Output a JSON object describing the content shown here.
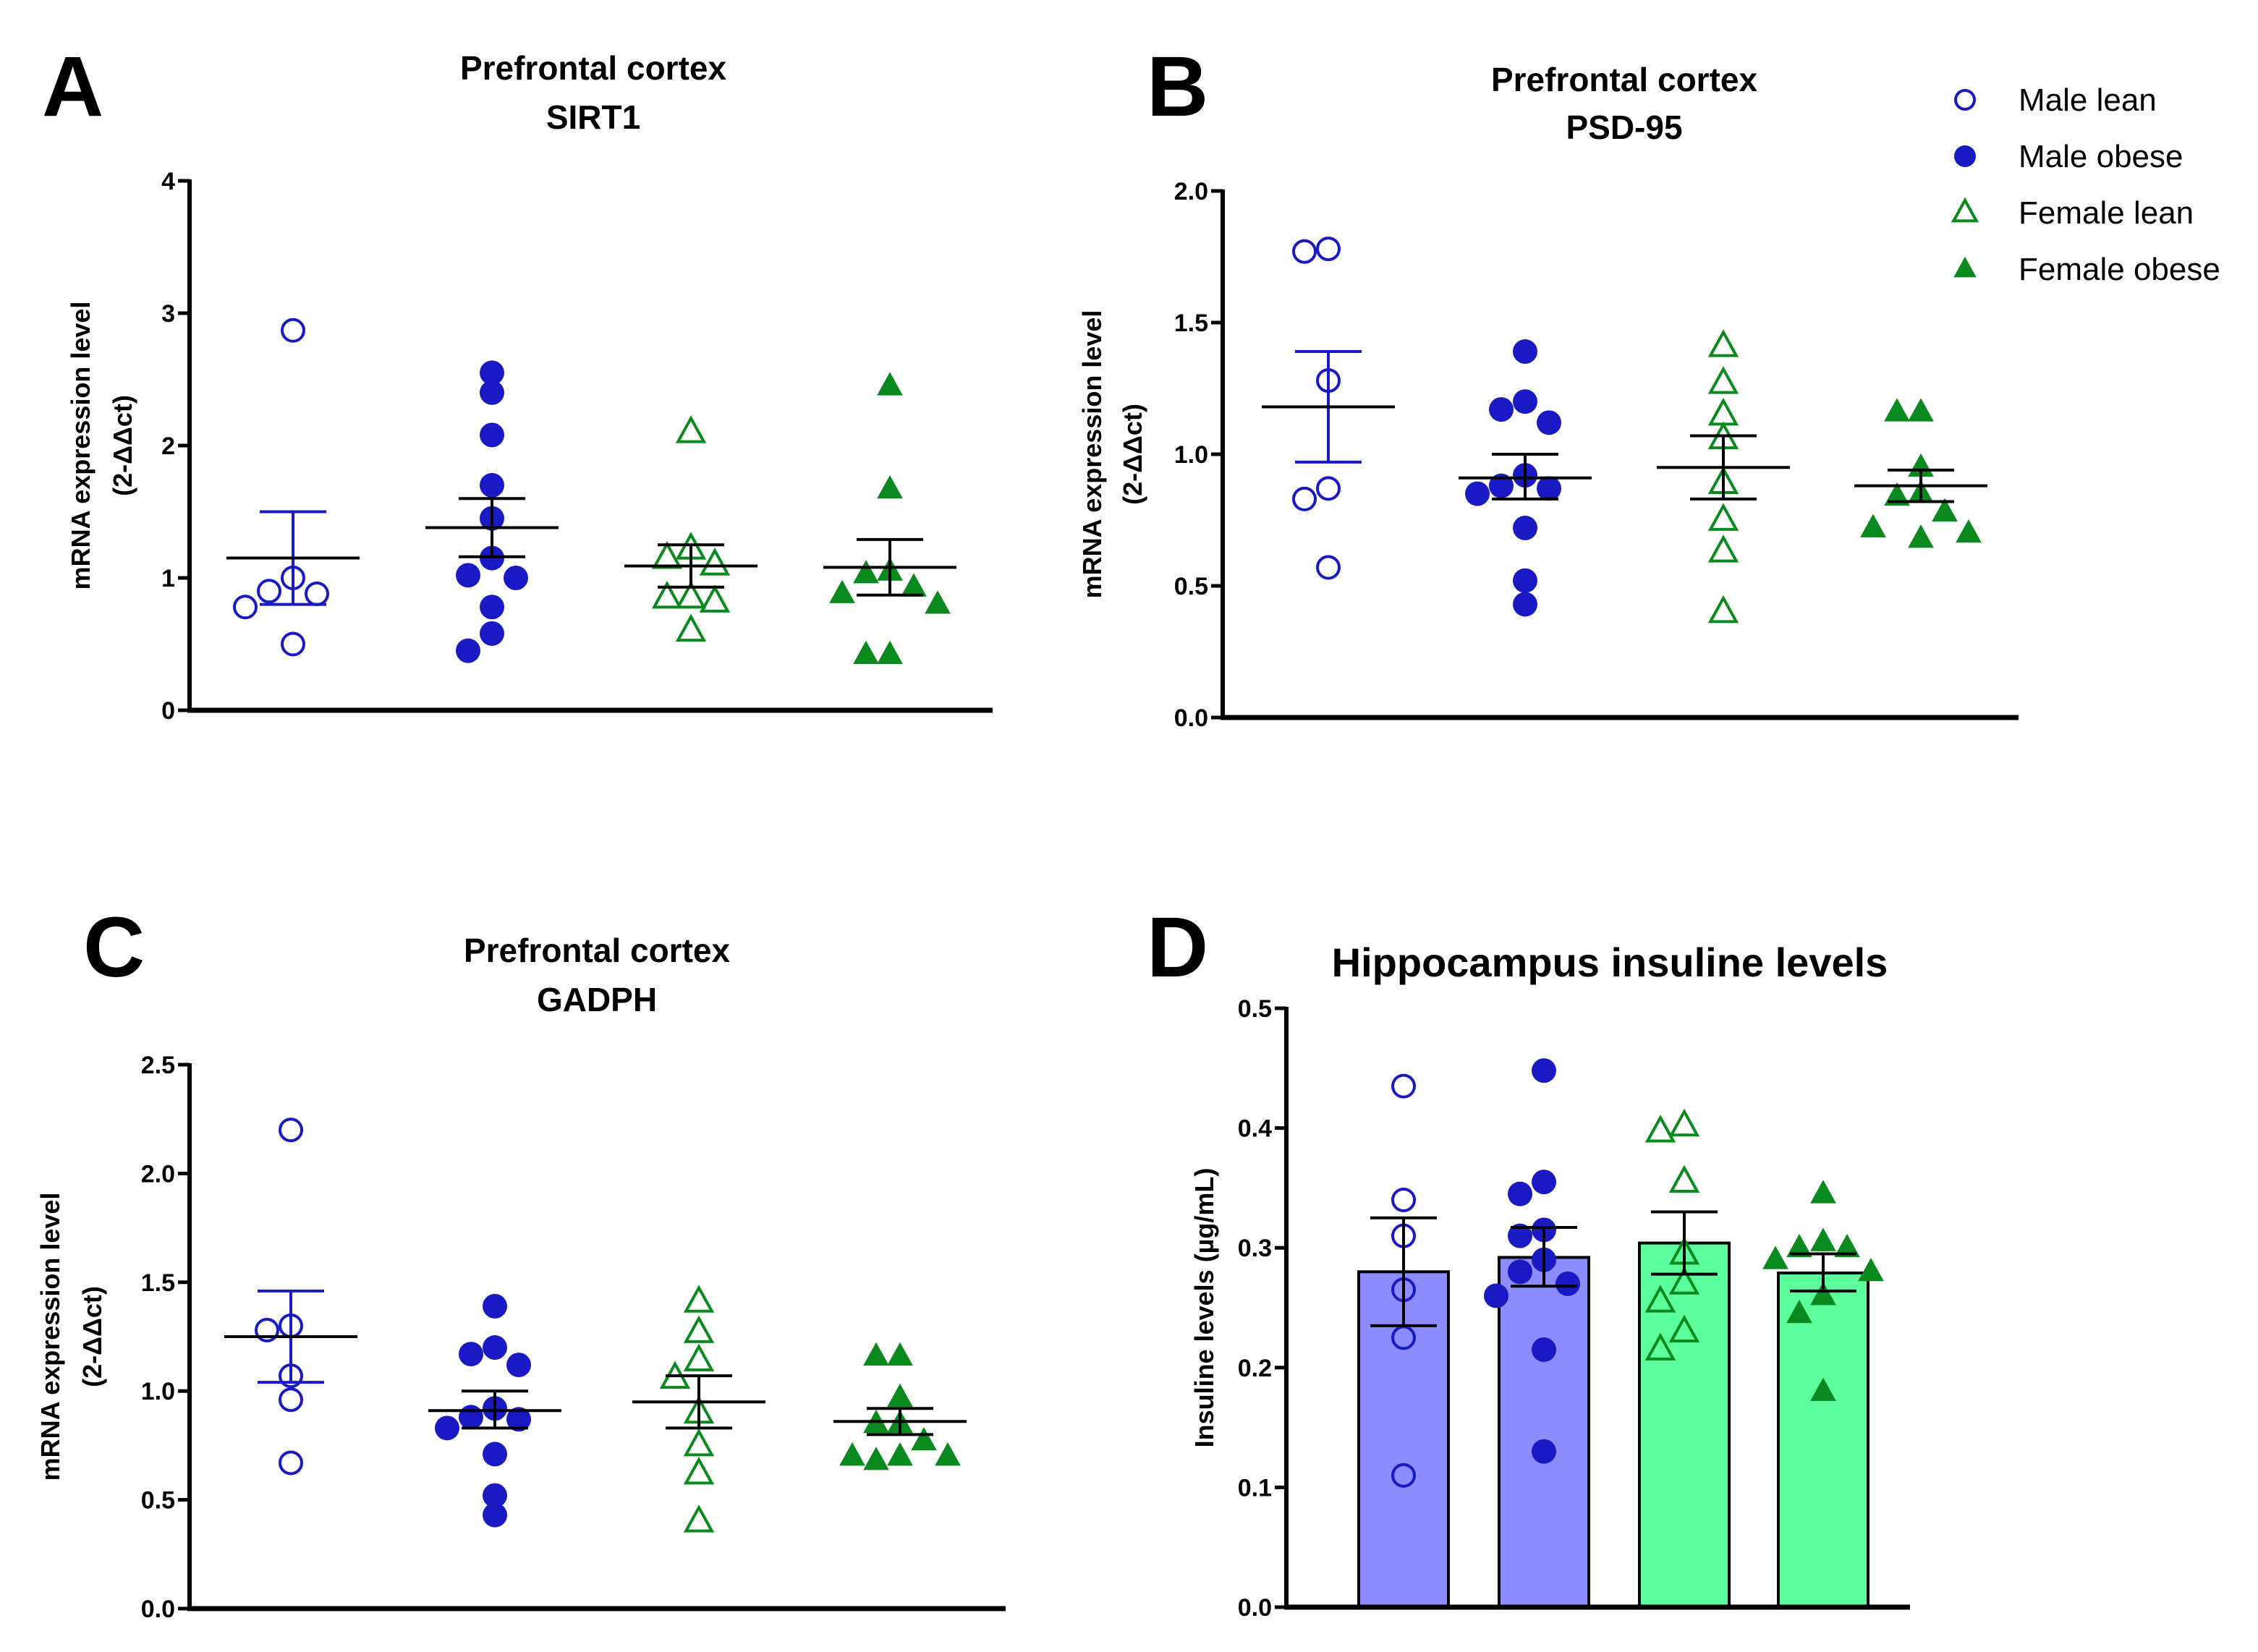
{
  "legend": [
    {
      "label": "Male lean",
      "marker": "open-circle",
      "color": "#1a1ac4"
    },
    {
      "label": "Male obese",
      "marker": "filled-circle",
      "color": "#1a1ac4"
    },
    {
      "label": "Female lean",
      "marker": "open-triangle",
      "color": "#0a8a1e"
    },
    {
      "label": "Female obese",
      "marker": "filled-triangle",
      "color": "#0a8a1e"
    }
  ],
  "bar_colors": {
    "male": "#8c8cff",
    "female": "#5cff9c"
  },
  "chart_data": [
    {
      "panel": "A",
      "type": "scatter",
      "title": [
        "Prefrontal cortex",
        "SIRT1"
      ],
      "ylabel": [
        "mRNA expression level",
        "(2-ΔΔct)"
      ],
      "ylim": [
        0,
        4
      ],
      "yticks": [
        "0",
        "1",
        "2",
        "3",
        "4"
      ],
      "ytick_values": [
        0,
        1,
        2,
        3,
        4
      ],
      "groups": [
        {
          "name": "Male lean",
          "values": [
            2.87,
            1.0,
            0.9,
            0.88,
            0.78,
            0.5
          ],
          "mean": 1.15,
          "sem_low": 0.8,
          "sem_high": 1.5
        },
        {
          "name": "Male obese",
          "values": [
            2.55,
            2.4,
            2.08,
            1.7,
            1.45,
            1.15,
            1.02,
            1.0,
            0.78,
            0.58,
            0.45
          ],
          "mean": 1.38,
          "sem_low": 1.16,
          "sem_high": 1.6
        },
        {
          "name": "Female lean",
          "values": [
            2.1,
            1.22,
            1.15,
            1.1,
            0.85,
            0.85,
            0.82,
            0.6
          ],
          "mean": 1.09,
          "sem_low": 0.93,
          "sem_high": 1.25
        },
        {
          "name": "Female obese",
          "values": [
            2.45,
            1.67,
            1.05,
            1.03,
            0.93,
            0.88,
            0.8,
            0.42,
            0.42
          ],
          "mean": 1.08,
          "sem_low": 0.87,
          "sem_high": 1.29
        }
      ]
    },
    {
      "panel": "B",
      "type": "scatter",
      "title": [
        "Prefrontal cortex",
        "PSD-95"
      ],
      "ylabel": [
        "mRNA expression level",
        "(2-ΔΔct)"
      ],
      "ylim": [
        0,
        2
      ],
      "yticks": [
        "0.0",
        "0.5",
        "1.0",
        "1.5",
        "2.0"
      ],
      "ytick_values": [
        0,
        0.5,
        1,
        1.5,
        2
      ],
      "groups": [
        {
          "name": "Male lean",
          "values": [
            1.78,
            1.77,
            1.28,
            0.87,
            0.83,
            0.57
          ],
          "mean": 1.18,
          "sem_low": 0.97,
          "sem_high": 1.39
        },
        {
          "name": "Male obese",
          "values": [
            1.39,
            1.2,
            1.17,
            1.12,
            0.92,
            0.88,
            0.87,
            0.85,
            0.72,
            0.52,
            0.43
          ],
          "mean": 0.91,
          "sem_low": 0.83,
          "sem_high": 1.0
        },
        {
          "name": "Female lean",
          "values": [
            1.41,
            1.27,
            1.15,
            1.06,
            0.89,
            0.75,
            0.63,
            0.4
          ],
          "mean": 0.95,
          "sem_low": 0.83,
          "sem_high": 1.07
        },
        {
          "name": "Female obese",
          "values": [
            1.16,
            1.16,
            0.95,
            0.85,
            0.84,
            0.78,
            0.72,
            0.7,
            0.68
          ],
          "mean": 0.88,
          "sem_low": 0.82,
          "sem_high": 0.94
        }
      ]
    },
    {
      "panel": "C",
      "type": "scatter",
      "title": [
        "Prefrontal cortex",
        "GADPH"
      ],
      "ylabel": [
        "mRNA expression level",
        "(2-ΔΔct)"
      ],
      "ylim": [
        0,
        2.5
      ],
      "yticks": [
        "0.0",
        "0.5",
        "1.0",
        "1.5",
        "2.0",
        "2.5"
      ],
      "ytick_values": [
        0,
        0.5,
        1,
        1.5,
        2,
        2.5
      ],
      "groups": [
        {
          "name": "Male lean",
          "values": [
            2.2,
            1.3,
            1.28,
            1.07,
            0.96,
            0.67
          ],
          "mean": 1.25,
          "sem_low": 1.04,
          "sem_high": 1.46
        },
        {
          "name": "Male obese",
          "values": [
            1.39,
            1.2,
            1.17,
            1.12,
            0.92,
            0.88,
            0.87,
            0.83,
            0.71,
            0.52,
            0.43
          ],
          "mean": 0.91,
          "sem_low": 0.83,
          "sem_high": 1.0
        },
        {
          "name": "Female lean",
          "values": [
            1.41,
            1.27,
            1.14,
            1.06,
            0.9,
            0.75,
            0.62,
            0.4
          ],
          "mean": 0.95,
          "sem_low": 0.83,
          "sem_high": 1.07
        },
        {
          "name": "Female obese",
          "values": [
            1.16,
            1.16,
            0.97,
            0.85,
            0.85,
            0.77,
            0.7,
            0.7,
            0.7,
            0.68
          ],
          "mean": 0.86,
          "sem_low": 0.8,
          "sem_high": 0.92
        }
      ]
    },
    {
      "panel": "D",
      "type": "bar",
      "title": [
        "Hippocampus insuline levels"
      ],
      "ylabel": [
        "Insuline levels (µg/mL)"
      ],
      "ylim": [
        0,
        0.5
      ],
      "yticks": [
        "0.0",
        "0.1",
        "0.2",
        "0.3",
        "0.4",
        "0.5"
      ],
      "ytick_values": [
        0,
        0.1,
        0.2,
        0.3,
        0.4,
        0.5
      ],
      "groups": [
        {
          "name": "Male lean",
          "values": [
            0.435,
            0.34,
            0.31,
            0.265,
            0.225,
            0.11
          ],
          "mean": 0.28,
          "sem_low": 0.235,
          "sem_high": 0.325
        },
        {
          "name": "Male obese",
          "values": [
            0.448,
            0.355,
            0.345,
            0.315,
            0.31,
            0.29,
            0.28,
            0.27,
            0.26,
            0.215,
            0.13
          ],
          "mean": 0.292,
          "sem_low": 0.268,
          "sem_high": 0.317
        },
        {
          "name": "Female lean",
          "values": [
            0.402,
            0.397,
            0.355,
            0.295,
            0.27,
            0.255,
            0.23,
            0.215
          ],
          "mean": 0.304,
          "sem_low": 0.278,
          "sem_high": 0.33
        },
        {
          "name": "Female obese",
          "values": [
            0.345,
            0.305,
            0.3,
            0.3,
            0.29,
            0.28,
            0.26,
            0.245,
            0.18
          ],
          "mean": 0.279,
          "sem_low": 0.264,
          "sem_high": 0.295
        }
      ]
    }
  ]
}
